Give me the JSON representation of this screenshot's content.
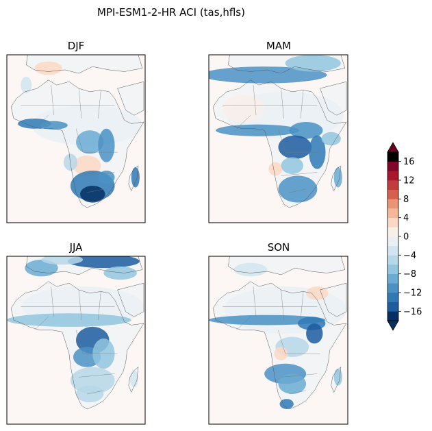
{
  "figure": {
    "title": "MPI-ESM1-2-HR ACI (tas,hfls)"
  },
  "chart_data": {
    "type": "heatmap",
    "title": "MPI-ESM1-2-HR ACI (tas,hfls)",
    "panels": [
      {
        "title": "DJF",
        "description_region": "Africa",
        "strong_negative_regions": [
          "southern Africa",
          "West African coast",
          "Congo basin",
          "Madagascar east coast"
        ],
        "weak_positive_regions": [
          "Angola/Zambia",
          "Mediterranean coast"
        ]
      },
      {
        "title": "MAM",
        "description_region": "Africa",
        "strong_negative_regions": [
          "Sahel belt",
          "Congo basin",
          "East Africa",
          "Mediterranean coast"
        ],
        "weak_positive_regions": [
          "Angola",
          "northern Sahara"
        ]
      },
      {
        "title": "JJA",
        "description_region": "Africa",
        "strong_negative_regions": [
          "southern Europe",
          "Sahel belt",
          "Congo basin",
          "southern Africa"
        ],
        "weak_positive_regions": []
      },
      {
        "title": "SON",
        "description_region": "Africa",
        "strong_negative_regions": [
          "Sahel belt",
          "Ethiopian highlands",
          "southern Africa"
        ],
        "weak_positive_regions": [
          "Angola"
        ]
      }
    ],
    "colorbar": {
      "levels": [
        -18,
        -16,
        -14,
        -12,
        -10,
        -8,
        -6,
        -4,
        -2,
        0,
        2,
        4,
        6,
        8,
        10,
        12,
        14,
        16,
        18
      ],
      "ticks": [
        -16,
        -12,
        -8,
        -4,
        0,
        4,
        8,
        12,
        16
      ],
      "tick_labels": [
        "−16",
        "−12",
        "−8",
        "−4",
        "0",
        "4",
        "8",
        "12",
        "16"
      ],
      "extend": "both",
      "colors": [
        "#053061",
        "#1c5c9f",
        "#2f79b5",
        "#4a92c4",
        "#6aabd2",
        "#92c5de",
        "#b6d7e8",
        "#d1e5f0",
        "#e9f0f4",
        "#f9efe9",
        "#fbd8c4",
        "#f6b799",
        "#e99474",
        "#d6604d",
        "#c33c3c",
        "#a8172b",
        "#80062a"
      ],
      "under_color": "#053061",
      "over_color": "#67001f"
    }
  }
}
